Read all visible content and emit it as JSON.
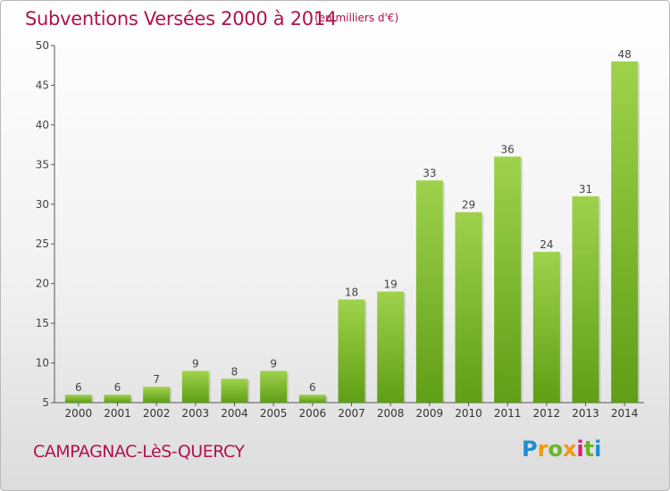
{
  "header": {
    "title": "Subventions Versées 2000 à 2014",
    "subtitle": "(en milliers d'€)"
  },
  "footer": {
    "commune": "CAMPAGNAC-LèS-QUERCY",
    "logo_letters": [
      "P",
      "r",
      "o",
      "x",
      "i",
      "t",
      "i"
    ]
  },
  "colors": {
    "title": "#b0124d",
    "bar_light": "#9fd24c",
    "bar_dark": "#5f9e16",
    "logo_blue": "#1e8ed6",
    "logo_orange": "#f09a10",
    "logo_green": "#6ab42a",
    "logo_pink": "#d6217a"
  },
  "chart_data": {
    "type": "bar",
    "title": "Subventions Versées 2000 à 2014",
    "subtitle": "(en milliers d'€)",
    "categories": [
      "2000",
      "2001",
      "2002",
      "2003",
      "2004",
      "2005",
      "2006",
      "2007",
      "2008",
      "2009",
      "2010",
      "2011",
      "2012",
      "2013",
      "2014"
    ],
    "values": [
      6,
      6,
      7,
      9,
      8,
      9,
      6,
      18,
      19,
      33,
      29,
      36,
      24,
      31,
      48
    ],
    "ylim": [
      5,
      50
    ],
    "yticks": [
      5,
      10,
      15,
      20,
      25,
      30,
      35,
      40,
      45,
      50
    ],
    "grid": false,
    "data_labels": true
  }
}
